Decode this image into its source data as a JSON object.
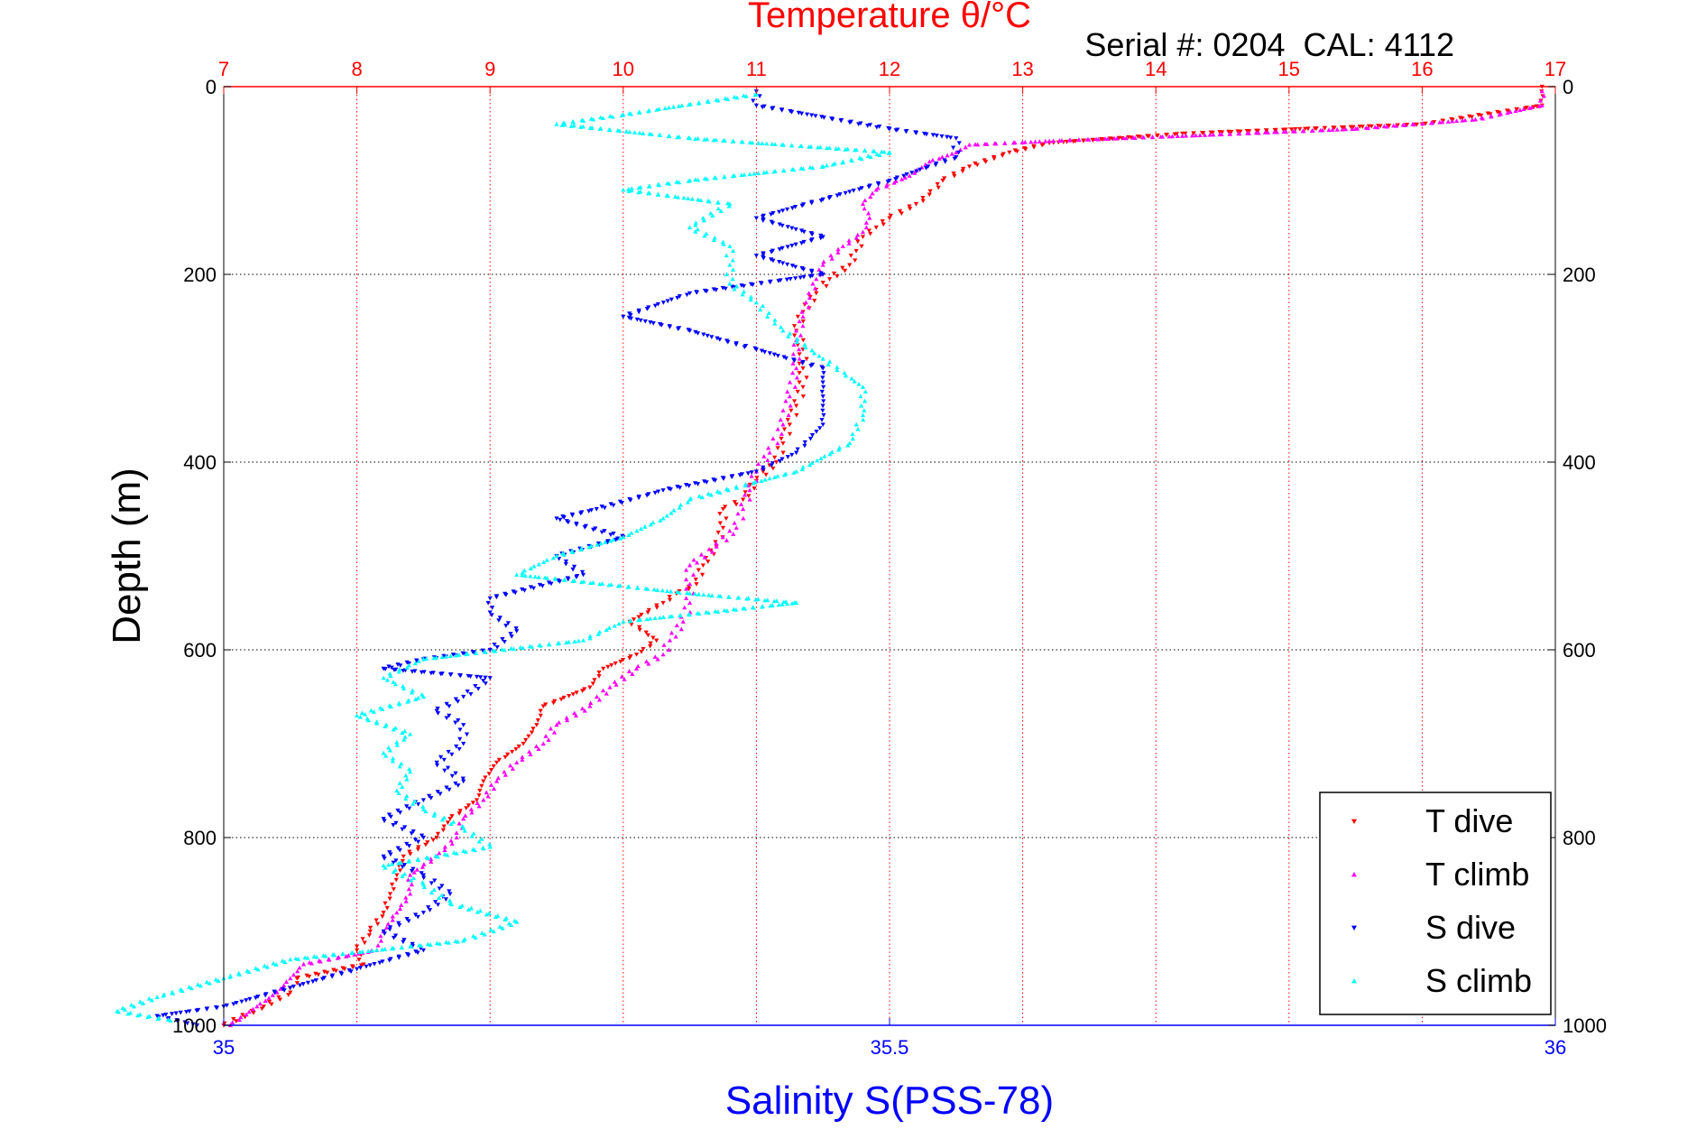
{
  "chart_data": {
    "type": "scatter",
    "title": "Temperature θ/°C",
    "subtitle": "Serial #: 0204  CAL: 4112",
    "xlabel_bottom": "Salinity S(PSS-78)",
    "xlabel_top": "Temperature θ/°C",
    "ylabel": "Depth (m)",
    "ylim": [
      1000,
      0
    ],
    "xlim_temperature": [
      7,
      17
    ],
    "xlim_salinity": [
      35,
      36
    ],
    "temperature_ticks": [
      "7",
      "8",
      "9",
      "10",
      "11",
      "12",
      "13",
      "14",
      "15",
      "16",
      "17"
    ],
    "salinity_ticks": [
      "35",
      "35.5",
      "36"
    ],
    "depth_ticks": [
      "0",
      "200",
      "400",
      "600",
      "800",
      "1000"
    ],
    "grid": true,
    "legend_position": "bottom-right",
    "colors": {
      "temperature_axis": "#ff0000",
      "salinity_axis": "#0000ff",
      "grid": "#000000"
    },
    "series": [
      {
        "name": "T dive",
        "axis": "temperature",
        "marker": "triangle-down",
        "color": "#ff0000",
        "points": [
          [
            16.9,
            0
          ],
          [
            16.9,
            20
          ],
          [
            16.0,
            40
          ],
          [
            14.2,
            50
          ],
          [
            13.2,
            60
          ],
          [
            12.9,
            70
          ],
          [
            12.6,
            85
          ],
          [
            12.4,
            100
          ],
          [
            12.3,
            115
          ],
          [
            12.2,
            125
          ],
          [
            12.0,
            140
          ],
          [
            11.9,
            150
          ],
          [
            11.8,
            160
          ],
          [
            11.75,
            175
          ],
          [
            11.7,
            190
          ],
          [
            11.55,
            205
          ],
          [
            11.45,
            220
          ],
          [
            11.35,
            240
          ],
          [
            11.3,
            260
          ],
          [
            11.35,
            280
          ],
          [
            11.35,
            300
          ],
          [
            11.35,
            320
          ],
          [
            11.3,
            340
          ],
          [
            11.25,
            360
          ],
          [
            11.2,
            380
          ],
          [
            11.15,
            400
          ],
          [
            11.0,
            420
          ],
          [
            10.9,
            440
          ],
          [
            10.75,
            450
          ],
          [
            10.75,
            470
          ],
          [
            10.7,
            490
          ],
          [
            10.6,
            510
          ],
          [
            10.55,
            530
          ],
          [
            10.4,
            540
          ],
          [
            10.3,
            550
          ],
          [
            10.05,
            570
          ],
          [
            10.25,
            590
          ],
          [
            10.1,
            605
          ],
          [
            9.85,
            620
          ],
          [
            9.75,
            640
          ],
          [
            9.4,
            660
          ],
          [
            9.35,
            680
          ],
          [
            9.25,
            700
          ],
          [
            9.05,
            720
          ],
          [
            8.95,
            740
          ],
          [
            8.9,
            760
          ],
          [
            8.7,
            780
          ],
          [
            8.6,
            800
          ],
          [
            8.35,
            820
          ],
          [
            8.3,
            840
          ],
          [
            8.25,
            860
          ],
          [
            8.2,
            880
          ],
          [
            8.1,
            900
          ],
          [
            8.0,
            920
          ],
          [
            8.05,
            935
          ],
          [
            7.55,
            950
          ],
          [
            7.5,
            965
          ],
          [
            7.3,
            980
          ],
          [
            7.0,
            1000
          ]
        ]
      },
      {
        "name": "T climb",
        "axis": "temperature",
        "marker": "triangle-up",
        "color": "#ff00ff",
        "points": [
          [
            16.9,
            5
          ],
          [
            16.9,
            20
          ],
          [
            16.4,
            35
          ],
          [
            15.5,
            45
          ],
          [
            14.3,
            52
          ],
          [
            13.2,
            58
          ],
          [
            12.6,
            62
          ],
          [
            12.5,
            70
          ],
          [
            12.3,
            80
          ],
          [
            12.15,
            95
          ],
          [
            11.9,
            110
          ],
          [
            11.8,
            125
          ],
          [
            11.85,
            140
          ],
          [
            11.8,
            155
          ],
          [
            11.65,
            170
          ],
          [
            11.5,
            190
          ],
          [
            11.45,
            205
          ],
          [
            11.4,
            225
          ],
          [
            11.35,
            245
          ],
          [
            11.3,
            270
          ],
          [
            11.3,
            300
          ],
          [
            11.25,
            330
          ],
          [
            11.2,
            360
          ],
          [
            11.1,
            390
          ],
          [
            11.0,
            410
          ],
          [
            10.95,
            430
          ],
          [
            10.9,
            450
          ],
          [
            10.85,
            470
          ],
          [
            10.7,
            490
          ],
          [
            10.5,
            510
          ],
          [
            10.5,
            530
          ],
          [
            10.5,
            550
          ],
          [
            10.45,
            570
          ],
          [
            10.35,
            590
          ],
          [
            10.3,
            605
          ],
          [
            10.1,
            620
          ],
          [
            9.9,
            640
          ],
          [
            9.75,
            660
          ],
          [
            9.5,
            680
          ],
          [
            9.4,
            700
          ],
          [
            9.2,
            720
          ],
          [
            9.05,
            740
          ],
          [
            8.95,
            760
          ],
          [
            8.8,
            780
          ],
          [
            8.75,
            800
          ],
          [
            8.6,
            820
          ],
          [
            8.4,
            840
          ],
          [
            8.4,
            860
          ],
          [
            8.3,
            880
          ],
          [
            8.2,
            900
          ],
          [
            8.15,
            920
          ],
          [
            7.6,
            935
          ],
          [
            7.5,
            950
          ],
          [
            7.4,
            965
          ],
          [
            7.25,
            980
          ],
          [
            7.05,
            1000
          ]
        ]
      },
      {
        "name": "S dive",
        "axis": "salinity",
        "marker": "triangle-down",
        "color": "#0000ff",
        "points": [
          [
            35.4,
            5
          ],
          [
            35.4,
            20
          ],
          [
            35.5,
            45
          ],
          [
            35.55,
            55
          ],
          [
            35.55,
            75
          ],
          [
            35.5,
            100
          ],
          [
            35.45,
            120
          ],
          [
            35.4,
            140
          ],
          [
            35.45,
            160
          ],
          [
            35.4,
            180
          ],
          [
            35.45,
            200
          ],
          [
            35.35,
            220
          ],
          [
            35.3,
            245
          ],
          [
            35.35,
            260
          ],
          [
            35.4,
            280
          ],
          [
            35.45,
            300
          ],
          [
            35.45,
            330
          ],
          [
            35.45,
            360
          ],
          [
            35.43,
            390
          ],
          [
            35.4,
            410
          ],
          [
            35.33,
            430
          ],
          [
            35.28,
            450
          ],
          [
            35.25,
            460
          ],
          [
            35.3,
            480
          ],
          [
            35.25,
            500
          ],
          [
            35.27,
            520
          ],
          [
            35.2,
            545
          ],
          [
            35.2,
            560
          ],
          [
            35.22,
            580
          ],
          [
            35.2,
            600
          ],
          [
            35.15,
            610
          ],
          [
            35.12,
            620
          ],
          [
            35.2,
            630
          ],
          [
            35.18,
            650
          ],
          [
            35.16,
            665
          ],
          [
            35.18,
            680
          ],
          [
            35.18,
            700
          ],
          [
            35.16,
            720
          ],
          [
            35.18,
            740
          ],
          [
            35.15,
            760
          ],
          [
            35.12,
            780
          ],
          [
            35.15,
            800
          ],
          [
            35.12,
            820
          ],
          [
            35.15,
            840
          ],
          [
            35.17,
            860
          ],
          [
            35.15,
            880
          ],
          [
            35.12,
            900
          ],
          [
            35.15,
            920
          ],
          [
            35.1,
            940
          ],
          [
            35.05,
            960
          ],
          [
            35.0,
            980
          ],
          [
            34.95,
            990
          ],
          [
            34.98,
            1000
          ]
        ]
      },
      {
        "name": "S climb",
        "axis": "salinity",
        "marker": "triangle-up",
        "color": "#00ffff",
        "points": [
          [
            35.4,
            8
          ],
          [
            35.3,
            30
          ],
          [
            35.25,
            40
          ],
          [
            35.35,
            55
          ],
          [
            35.5,
            70
          ],
          [
            35.45,
            85
          ],
          [
            35.35,
            100
          ],
          [
            35.3,
            110
          ],
          [
            35.38,
            125
          ],
          [
            35.35,
            150
          ],
          [
            35.38,
            170
          ],
          [
            35.38,
            190
          ],
          [
            35.38,
            210
          ],
          [
            35.4,
            230
          ],
          [
            35.42,
            260
          ],
          [
            35.45,
            290
          ],
          [
            35.48,
            320
          ],
          [
            35.48,
            350
          ],
          [
            35.47,
            380
          ],
          [
            35.43,
            410
          ],
          [
            35.35,
            440
          ],
          [
            35.33,
            460
          ],
          [
            35.3,
            480
          ],
          [
            35.25,
            500
          ],
          [
            35.22,
            520
          ],
          [
            35.35,
            540
          ],
          [
            35.43,
            550
          ],
          [
            35.3,
            570
          ],
          [
            35.27,
            590
          ],
          [
            35.15,
            610
          ],
          [
            35.12,
            630
          ],
          [
            35.15,
            650
          ],
          [
            35.1,
            670
          ],
          [
            35.14,
            690
          ],
          [
            35.12,
            710
          ],
          [
            35.14,
            730
          ],
          [
            35.13,
            750
          ],
          [
            35.15,
            770
          ],
          [
            35.18,
            790
          ],
          [
            35.2,
            810
          ],
          [
            35.12,
            830
          ],
          [
            35.15,
            850
          ],
          [
            35.17,
            870
          ],
          [
            35.22,
            890
          ],
          [
            35.18,
            910
          ],
          [
            35.05,
            930
          ],
          [
            35.0,
            950
          ],
          [
            34.95,
            970
          ],
          [
            34.92,
            985
          ],
          [
            34.96,
            995
          ]
        ]
      }
    ]
  }
}
